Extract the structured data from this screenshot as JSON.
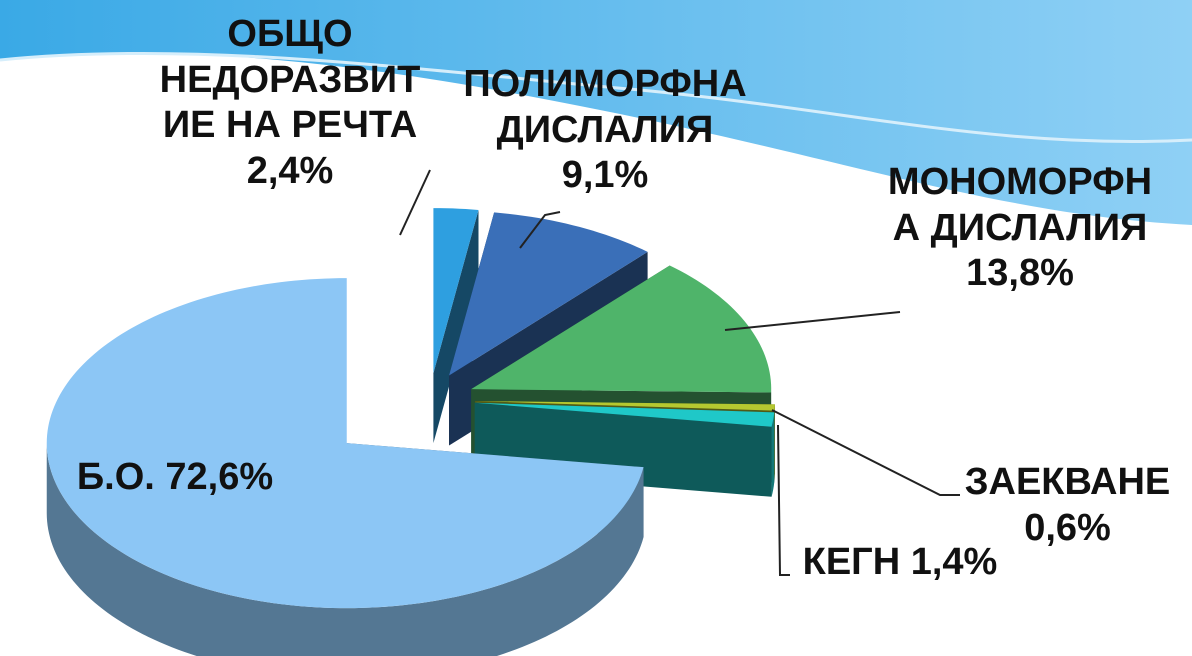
{
  "chart_data": {
    "type": "pie",
    "categories": [
      "ОБЩО НЕДОРАЗВИТИЕ НА РЕЧТА",
      "ПОЛИМОРФНА ДИСЛАЛИЯ",
      "МОНОМОРФНА ДИСЛАЛИЯ",
      "ЗАЕКВАНЕ",
      "КЕГН",
      "Б.О."
    ],
    "values": [
      2.4,
      9.1,
      13.8,
      0.6,
      1.4,
      72.6
    ],
    "value_labels": [
      "2,4%",
      "9,1%",
      "13,8%",
      "0,6%",
      "1,4%",
      "72,6%"
    ],
    "colors": [
      "#2e9fe0",
      "#3a6fb8",
      "#4fb46a",
      "#b5c830",
      "#1fc8c8",
      "#8cc6f5"
    ]
  }
}
